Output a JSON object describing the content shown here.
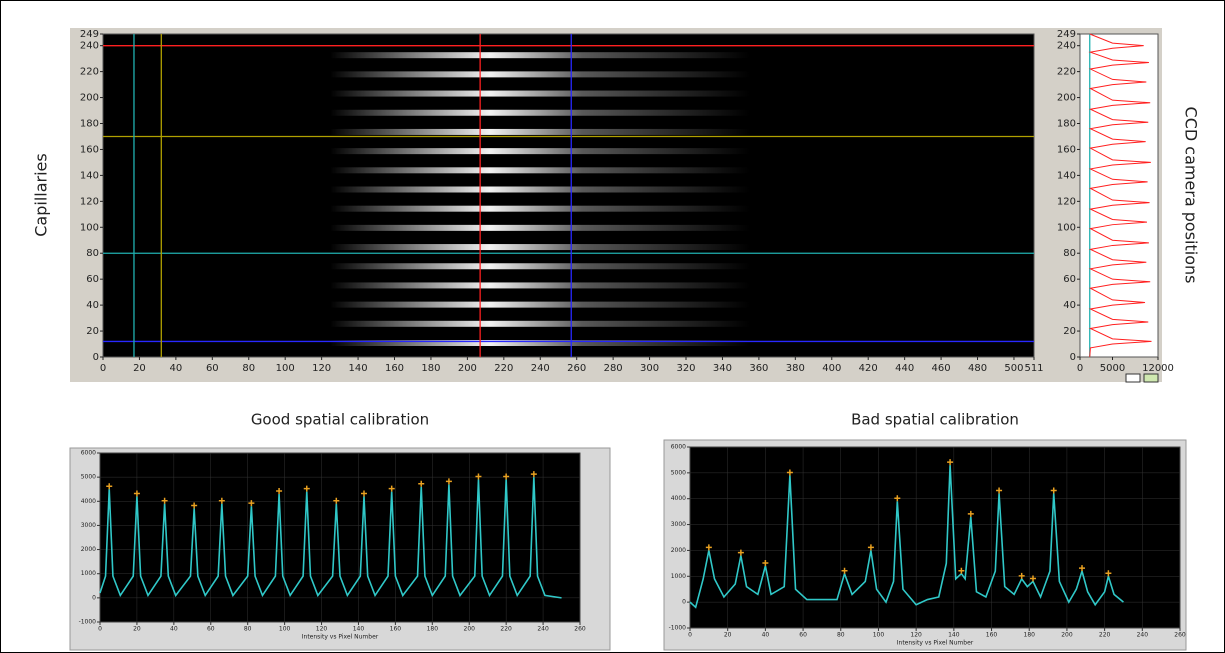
{
  "chart_data": [
    {
      "type": "heatmap",
      "ylabel": "Capillaries",
      "xlim": [
        0,
        511
      ],
      "xticks": [
        0,
        20,
        40,
        60,
        80,
        100,
        120,
        140,
        160,
        180,
        200,
        220,
        240,
        260,
        280,
        300,
        320,
        340,
        360,
        380,
        400,
        420,
        440,
        460,
        480,
        500,
        511
      ],
      "ylim": [
        0,
        249
      ],
      "yticks": [
        0,
        20,
        40,
        60,
        80,
        100,
        120,
        140,
        160,
        180,
        200,
        220,
        240,
        249
      ],
      "hlines": [
        {
          "value": 240,
          "color": "#ff2020"
        },
        {
          "value": 170,
          "color": "#b0a000"
        },
        {
          "value": 80,
          "color": "#20b0b0"
        },
        {
          "value": 12,
          "color": "#2828ff"
        }
      ],
      "vlines": [
        {
          "value": 17,
          "color": "#20b0b0"
        },
        {
          "value": 32,
          "color": "#b0a000"
        },
        {
          "value": 207,
          "color": "#ff2020"
        },
        {
          "value": 257,
          "color": "#2828ff"
        }
      ]
    },
    {
      "type": "line",
      "orientation": "vertical",
      "ylabel": "CCD camera positions",
      "xlim": [
        0,
        12000
      ],
      "xticks": [
        0,
        5000,
        12000
      ],
      "ylim": [
        0,
        249
      ],
      "yticks": [
        0,
        20,
        40,
        60,
        80,
        100,
        120,
        140,
        160,
        180,
        200,
        220,
        240,
        249
      ],
      "positions": [
        0,
        7,
        10,
        12,
        14,
        22,
        25,
        27,
        29,
        37,
        40,
        42,
        44,
        53,
        56,
        58,
        60,
        68,
        71,
        73,
        75,
        83,
        86,
        88,
        90,
        99,
        102,
        104,
        106,
        114,
        117,
        119,
        121,
        130,
        133,
        135,
        137,
        145,
        148,
        150,
        152,
        161,
        164,
        166,
        168,
        176,
        179,
        181,
        183,
        191,
        194,
        196,
        198,
        207,
        210,
        212,
        214,
        222,
        225,
        227,
        229,
        235,
        238,
        240,
        242,
        249
      ],
      "series": [
        {
          "color": "#ff2020",
          "values": [
            1500,
            1600,
            5000,
            11000,
            5000,
            1600,
            5000,
            10500,
            5000,
            1600,
            5000,
            10000,
            5000,
            1600,
            5000,
            10800,
            5000,
            1600,
            5000,
            10200,
            5000,
            1600,
            5000,
            10600,
            5000,
            1600,
            5000,
            10300,
            5000,
            1600,
            5000,
            10700,
            5000,
            1600,
            5000,
            10400,
            5000,
            1600,
            5000,
            10900,
            5000,
            1600,
            5000,
            10100,
            5000,
            1600,
            5000,
            10500,
            5000,
            1600,
            5000,
            10800,
            5000,
            1600,
            5000,
            10200,
            5000,
            1600,
            5000,
            10600,
            5000,
            1600,
            5000,
            9800,
            5000,
            1500
          ]
        }
      ],
      "vlines": [
        {
          "value": 1500,
          "color": "#20b0b0"
        }
      ]
    },
    {
      "type": "line",
      "title": "Good spatial calibration",
      "xlabel": "Intensity vs Pixel Number",
      "xlim": [
        0,
        260
      ],
      "xticks": [
        0,
        20,
        40,
        60,
        80,
        100,
        120,
        140,
        160,
        180,
        200,
        220,
        240,
        260
      ],
      "ylim": [
        -1000,
        6000
      ],
      "yticks": [
        -1000,
        0,
        1000,
        2000,
        3000,
        4000,
        5000,
        6000
      ],
      "peak_color": "#e8a020",
      "x": [
        0,
        3,
        5,
        7,
        11,
        18,
        20,
        22,
        26,
        33,
        35,
        37,
        41,
        49,
        51,
        53,
        57,
        64,
        66,
        68,
        72,
        80,
        82,
        84,
        88,
        95,
        97,
        99,
        103,
        110,
        112,
        114,
        118,
        126,
        128,
        130,
        134,
        141,
        143,
        145,
        149,
        156,
        158,
        160,
        164,
        172,
        174,
        176,
        180,
        187,
        189,
        191,
        195,
        203,
        205,
        207,
        211,
        218,
        220,
        222,
        226,
        233,
        235,
        237,
        241,
        250
      ],
      "series": [
        {
          "color": "#30c8c8",
          "values": [
            200,
            900,
            4500,
            900,
            100,
            900,
            4200,
            900,
            100,
            900,
            3900,
            900,
            100,
            900,
            3700,
            900,
            100,
            900,
            3900,
            900,
            100,
            900,
            3800,
            900,
            100,
            900,
            4300,
            900,
            100,
            900,
            4400,
            900,
            100,
            900,
            3900,
            900,
            100,
            900,
            4200,
            900,
            100,
            900,
            4400,
            900,
            100,
            900,
            4600,
            900,
            100,
            900,
            4700,
            900,
            100,
            900,
            4900,
            900,
            100,
            900,
            4900,
            900,
            100,
            900,
            5000,
            900,
            100,
            0
          ]
        }
      ]
    },
    {
      "type": "line",
      "title": "Bad spatial calibration",
      "xlabel": "Intensity vs Pixel Number",
      "xlim": [
        0,
        260
      ],
      "xticks": [
        0,
        20,
        40,
        60,
        80,
        100,
        120,
        140,
        160,
        180,
        200,
        220,
        240,
        260
      ],
      "ylim": [
        -1000,
        6000
      ],
      "yticks": [
        -1000,
        0,
        1000,
        2000,
        3000,
        4000,
        5000,
        6000
      ],
      "peak_color": "#e8a020",
      "x": [
        0,
        3,
        7,
        10,
        13,
        18,
        24,
        27,
        30,
        36,
        40,
        43,
        50,
        53,
        56,
        62,
        70,
        78,
        82,
        86,
        93,
        96,
        99,
        104,
        108,
        110,
        113,
        120,
        126,
        132,
        136,
        138,
        141,
        144,
        146,
        149,
        152,
        157,
        162,
        164,
        167,
        172,
        176,
        179,
        182,
        186,
        191,
        193,
        196,
        201,
        205,
        208,
        211,
        215,
        220,
        222,
        225,
        230
      ],
      "series": [
        {
          "color": "#30c8c8",
          "values": [
            0,
            -200,
            900,
            2000,
            900,
            200,
            700,
            1800,
            600,
            300,
            1400,
            300,
            600,
            4900,
            500,
            100,
            100,
            100,
            1100,
            300,
            800,
            2000,
            500,
            0,
            800,
            3900,
            500,
            -100,
            100,
            200,
            1500,
            5300,
            900,
            1100,
            900,
            3300,
            400,
            200,
            1200,
            4200,
            600,
            300,
            900,
            600,
            800,
            200,
            1200,
            4200,
            800,
            0,
            500,
            1200,
            400,
            -100,
            400,
            1000,
            300,
            0
          ]
        }
      ]
    }
  ]
}
